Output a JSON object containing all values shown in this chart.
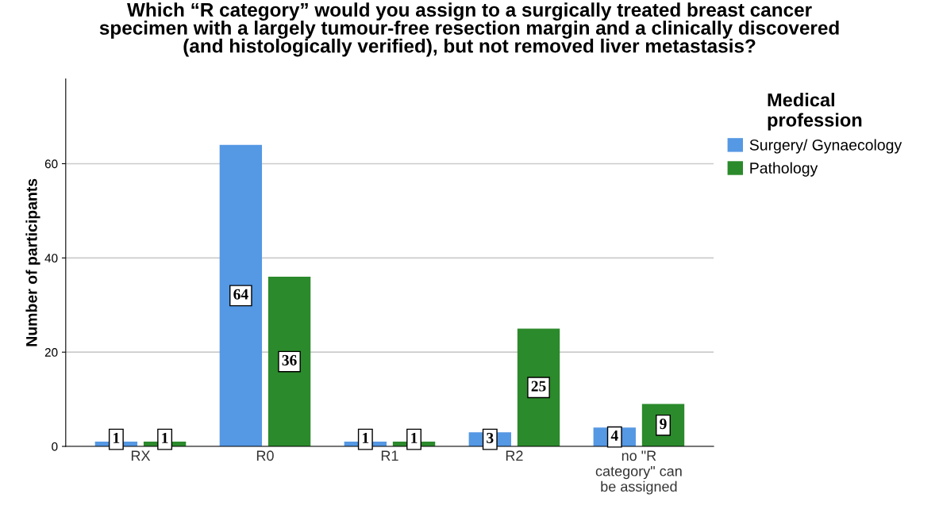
{
  "chart_data": {
    "type": "bar",
    "title": "Which “R category” would you assign to a surgically treated breast cancer\nspecimen with a largely tumour-free resection margin and a clinically discovered\n(and histologically verified), but not removed liver metastasis?",
    "ylabel": "Number of participants",
    "legend_title": "Medical\nprofession",
    "categories": [
      "RX",
      "R0",
      "R1",
      "R2",
      "no \"R\ncategory\" can\nbe assigned"
    ],
    "series": [
      {
        "name": "Surgery/ Gynaecology",
        "color": "#5598e4",
        "values": [
          1,
          64,
          1,
          3,
          4
        ]
      },
      {
        "name": "Pathology",
        "color": "#2b8a2b",
        "values": [
          1,
          36,
          1,
          25,
          9
        ]
      }
    ],
    "ylim": [
      0,
      78
    ],
    "yticks": [
      0,
      20,
      40,
      60
    ],
    "grid": "y",
    "legend": "right",
    "data_labels": true
  }
}
